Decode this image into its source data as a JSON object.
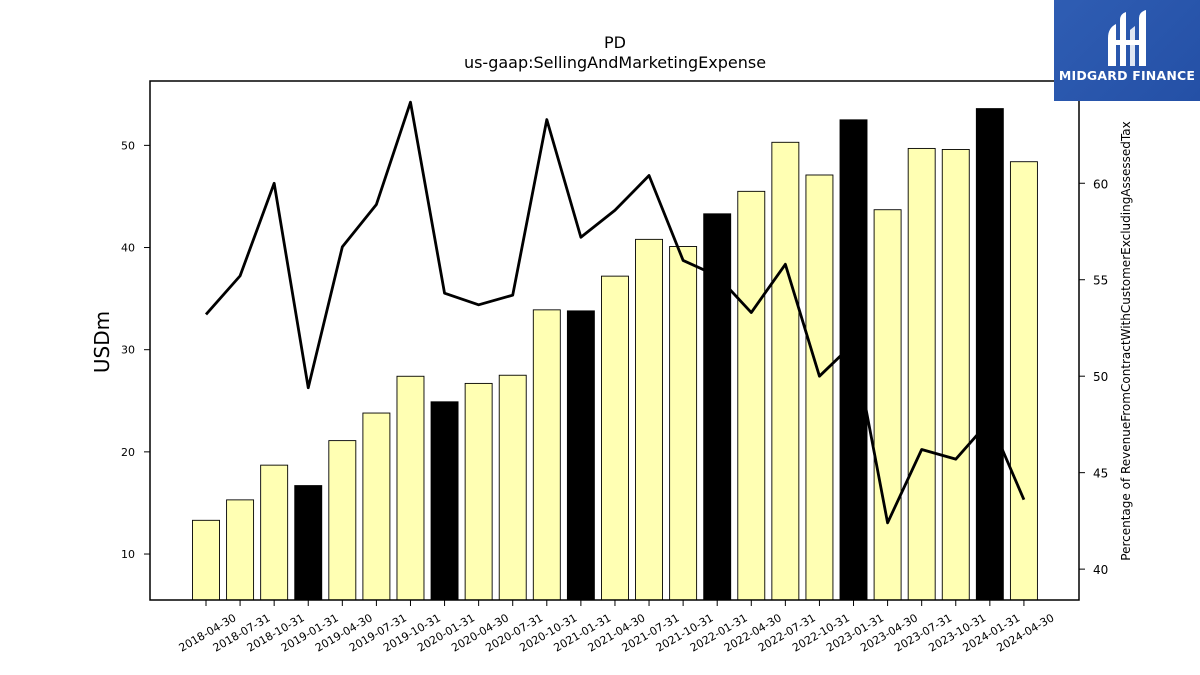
{
  "chart_data": {
    "type": "bar+line",
    "title": "PD",
    "subtitle": "us-gaap:SellingAndMarketingExpense",
    "ylabel": "USDm",
    "ylabel_right": "Percentage of RevenueFromContractWithCustomerExcludingAssessedTax",
    "ylim": [
      5.5,
      56.3
    ],
    "ylim_right": [
      38.4,
      65.3
    ],
    "yticks": [
      10,
      20,
      30,
      40,
      50
    ],
    "yticks_right": [
      40,
      45,
      50,
      55,
      60
    ],
    "categories": [
      "2018-04-30",
      "2018-07-31",
      "2018-10-31",
      "2019-01-31",
      "2019-04-30",
      "2019-07-31",
      "2019-10-31",
      "2020-01-31",
      "2020-04-30",
      "2020-07-31",
      "2020-10-31",
      "2021-01-31",
      "2021-04-30",
      "2021-07-31",
      "2021-10-31",
      "2022-01-31",
      "2022-04-30",
      "2022-07-31",
      "2022-10-31",
      "2023-01-31",
      "2023-04-30",
      "2023-07-31",
      "2023-10-31",
      "2024-01-31",
      "2024-04-30"
    ],
    "series": [
      {
        "type": "bar",
        "axis": "left",
        "values": [
          13.3,
          15.3,
          18.7,
          16.7,
          21.1,
          23.8,
          27.4,
          24.9,
          26.7,
          27.5,
          33.9,
          33.8,
          37.2,
          40.8,
          40.1,
          43.3,
          45.5,
          50.3,
          47.1,
          52.5,
          43.7,
          49.7,
          49.6,
          53.6,
          48.4
        ],
        "highlight": [
          false,
          false,
          false,
          true,
          false,
          false,
          false,
          true,
          false,
          false,
          false,
          true,
          false,
          false,
          false,
          true,
          false,
          false,
          false,
          true,
          false,
          false,
          false,
          true,
          false
        ],
        "color": "#ffffb3",
        "highlight_color": "#000000"
      },
      {
        "type": "line",
        "axis": "right",
        "values": [
          53.2,
          55.2,
          60.0,
          49.4,
          56.7,
          58.9,
          64.2,
          54.3,
          53.7,
          54.2,
          63.3,
          57.2,
          58.6,
          60.4,
          56.0,
          55.2,
          53.3,
          55.8,
          50.0,
          51.7,
          42.4,
          46.2,
          45.7,
          47.7,
          43.6
        ],
        "color": "#000000"
      }
    ],
    "legend": "none",
    "grid": false
  },
  "logo": {
    "brand": "MIDGARD FINANCE"
  }
}
